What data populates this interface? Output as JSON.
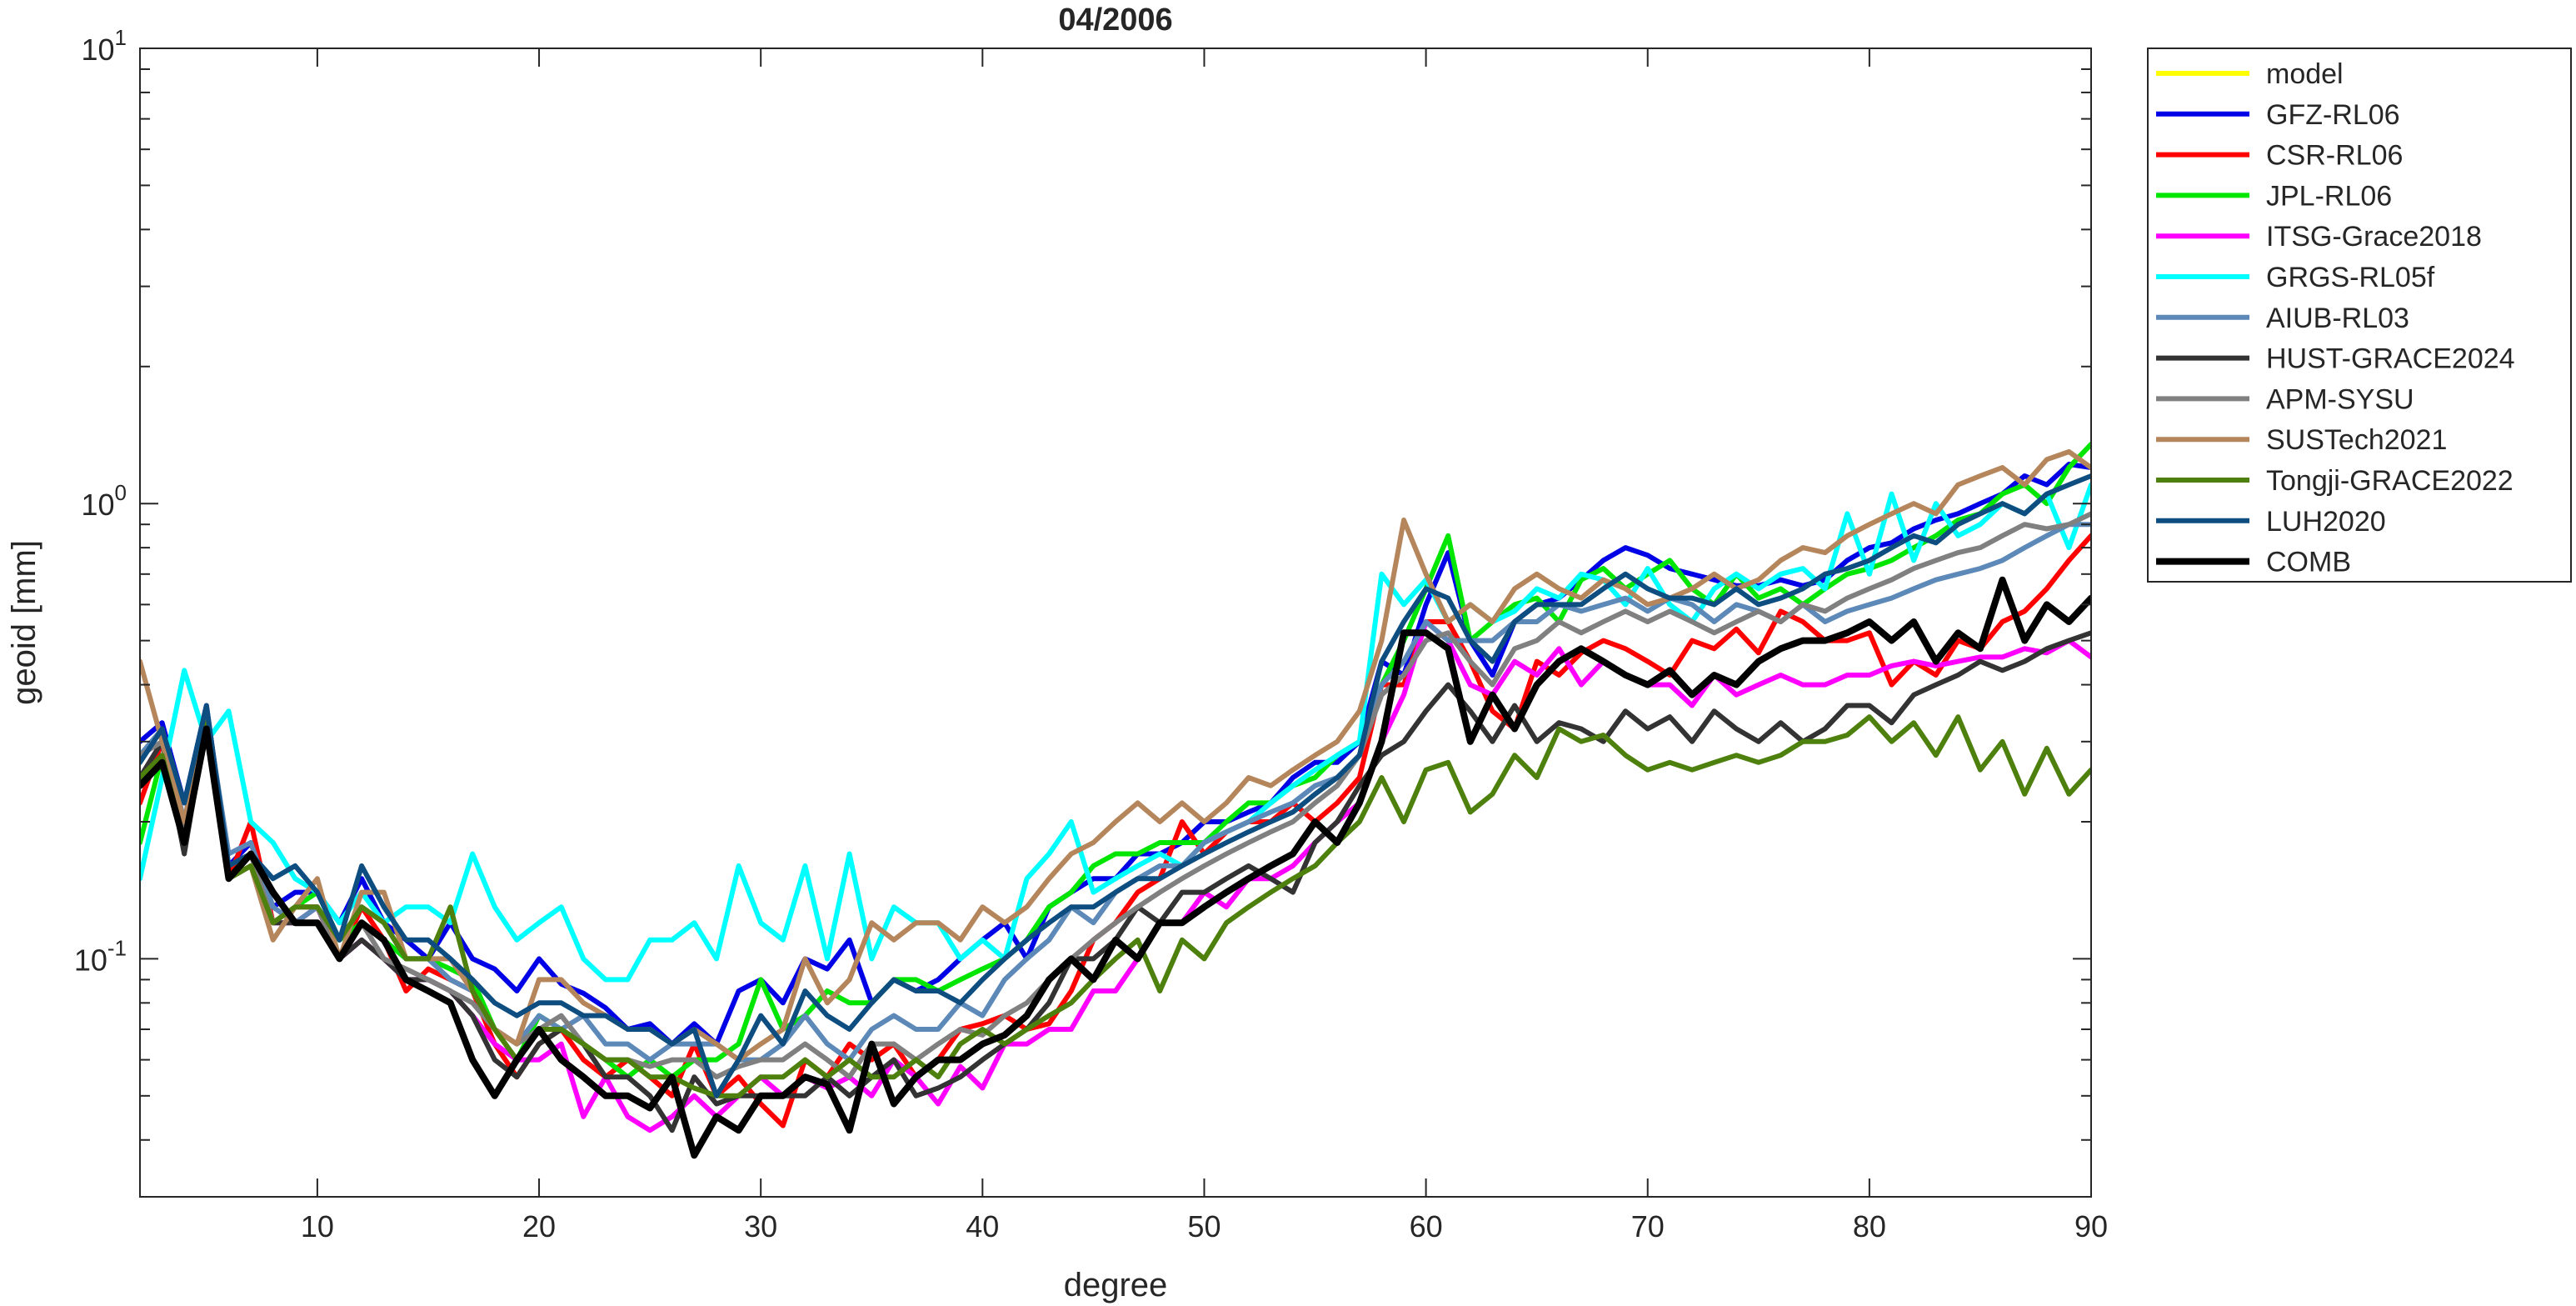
{
  "chart_data": {
    "type": "line",
    "title": "04/2006",
    "xlabel": "degree",
    "ylabel": "geoid [mm]",
    "xlim": [
      2,
      90
    ],
    "ylim": [
      0.03,
      10
    ],
    "yscale": "log",
    "xticks": [
      10,
      20,
      30,
      40,
      50,
      60,
      70,
      80,
      90
    ],
    "xtick_labels": [
      "10",
      "20",
      "30",
      "40",
      "50",
      "60",
      "70",
      "80",
      "90"
    ],
    "yticks": [
      0.1,
      1,
      10
    ],
    "ytick_labels": [
      {
        "base": "10",
        "exp": "-1"
      },
      {
        "base": "10",
        "exp": "0"
      },
      {
        "base": "10",
        "exp": "1"
      }
    ],
    "grid": false,
    "legend_position": "outside-right-top",
    "x_start": 2,
    "series": [
      {
        "name": "model",
        "color": "#ffff00",
        "width": 6,
        "values": []
      },
      {
        "name": "GFZ-RL06",
        "color": "#0000e6",
        "width": 6,
        "values": [
          0.3,
          0.33,
          0.22,
          0.36,
          0.16,
          0.18,
          0.13,
          0.14,
          0.14,
          0.12,
          0.15,
          0.12,
          0.11,
          0.1,
          0.12,
          0.1,
          0.095,
          0.085,
          0.1,
          0.088,
          0.084,
          0.078,
          0.07,
          0.072,
          0.065,
          0.072,
          0.065,
          0.085,
          0.09,
          0.08,
          0.1,
          0.095,
          0.11,
          0.08,
          0.09,
          0.085,
          0.09,
          0.1,
          0.11,
          0.12,
          0.1,
          0.13,
          0.14,
          0.15,
          0.15,
          0.17,
          0.17,
          0.18,
          0.2,
          0.2,
          0.21,
          0.22,
          0.25,
          0.27,
          0.27,
          0.3,
          0.45,
          0.42,
          0.6,
          0.78,
          0.5,
          0.42,
          0.55,
          0.6,
          0.62,
          0.68,
          0.75,
          0.8,
          0.77,
          0.72,
          0.7,
          0.68,
          0.66,
          0.66,
          0.68,
          0.66,
          0.68,
          0.75,
          0.8,
          0.82,
          0.88,
          0.92,
          0.95,
          1.0,
          1.05,
          1.15,
          1.1,
          1.22,
          1.2
        ]
      },
      {
        "name": "CSR-RL06",
        "color": "#ff0000",
        "width": 6,
        "values": [
          0.22,
          0.3,
          0.18,
          0.34,
          0.15,
          0.2,
          0.12,
          0.13,
          0.13,
          0.1,
          0.13,
          0.11,
          0.085,
          0.095,
          0.09,
          0.085,
          0.065,
          0.055,
          0.065,
          0.07,
          0.06,
          0.055,
          0.06,
          0.055,
          0.05,
          0.065,
          0.05,
          0.055,
          0.048,
          0.043,
          0.06,
          0.055,
          0.065,
          0.06,
          0.065,
          0.055,
          0.06,
          0.07,
          0.072,
          0.075,
          0.07,
          0.072,
          0.085,
          0.11,
          0.12,
          0.14,
          0.15,
          0.2,
          0.17,
          0.19,
          0.2,
          0.2,
          0.22,
          0.2,
          0.22,
          0.25,
          0.4,
          0.4,
          0.55,
          0.55,
          0.45,
          0.35,
          0.32,
          0.45,
          0.42,
          0.47,
          0.5,
          0.48,
          0.45,
          0.42,
          0.5,
          0.48,
          0.53,
          0.47,
          0.58,
          0.55,
          0.5,
          0.5,
          0.52,
          0.4,
          0.45,
          0.42,
          0.5,
          0.48,
          0.55,
          0.58,
          0.65,
          0.75,
          0.85
        ]
      },
      {
        "name": "JPL-RL06",
        "color": "#00e600",
        "width": 6,
        "values": [
          0.18,
          0.28,
          0.2,
          0.33,
          0.16,
          0.17,
          0.12,
          0.13,
          0.14,
          0.11,
          0.12,
          0.11,
          0.1,
          0.1,
          0.095,
          0.09,
          0.07,
          0.06,
          0.075,
          0.07,
          0.065,
          0.06,
          0.055,
          0.06,
          0.055,
          0.06,
          0.06,
          0.065,
          0.09,
          0.07,
          0.075,
          0.085,
          0.08,
          0.08,
          0.09,
          0.09,
          0.085,
          0.09,
          0.095,
          0.1,
          0.11,
          0.13,
          0.14,
          0.16,
          0.17,
          0.17,
          0.18,
          0.18,
          0.18,
          0.2,
          0.22,
          0.22,
          0.24,
          0.25,
          0.28,
          0.3,
          0.4,
          0.5,
          0.65,
          0.85,
          0.5,
          0.55,
          0.6,
          0.62,
          0.55,
          0.68,
          0.72,
          0.65,
          0.7,
          0.75,
          0.65,
          0.6,
          0.7,
          0.62,
          0.65,
          0.6,
          0.65,
          0.7,
          0.72,
          0.75,
          0.8,
          0.85,
          0.92,
          0.95,
          1.05,
          1.1,
          1.0,
          1.2,
          1.35
        ]
      },
      {
        "name": "ITSG-Grace2018",
        "color": "#ff00ff",
        "width": 6,
        "values": [
          0.25,
          0.3,
          0.2,
          0.35,
          0.15,
          0.17,
          0.12,
          0.12,
          0.13,
          0.1,
          0.11,
          0.1,
          0.09,
          0.09,
          0.085,
          0.075,
          0.065,
          0.06,
          0.06,
          0.065,
          0.045,
          0.055,
          0.045,
          0.042,
          0.045,
          0.05,
          0.045,
          0.05,
          0.055,
          0.05,
          0.055,
          0.052,
          0.055,
          0.05,
          0.06,
          0.055,
          0.048,
          0.058,
          0.052,
          0.065,
          0.065,
          0.07,
          0.07,
          0.085,
          0.085,
          0.1,
          0.12,
          0.12,
          0.14,
          0.13,
          0.15,
          0.15,
          0.16,
          0.18,
          0.2,
          0.22,
          0.3,
          0.38,
          0.55,
          0.5,
          0.4,
          0.38,
          0.45,
          0.42,
          0.48,
          0.4,
          0.45,
          0.42,
          0.4,
          0.4,
          0.36,
          0.42,
          0.38,
          0.4,
          0.42,
          0.4,
          0.4,
          0.42,
          0.42,
          0.44,
          0.45,
          0.44,
          0.45,
          0.46,
          0.46,
          0.48,
          0.47,
          0.5,
          0.46
        ]
      },
      {
        "name": "GRGS-RL05f",
        "color": "#00ffff",
        "width": 6,
        "values": [
          0.15,
          0.25,
          0.43,
          0.3,
          0.35,
          0.2,
          0.18,
          0.15,
          0.14,
          0.12,
          0.14,
          0.12,
          0.13,
          0.13,
          0.12,
          0.17,
          0.13,
          0.11,
          0.12,
          0.13,
          0.1,
          0.09,
          0.09,
          0.11,
          0.11,
          0.12,
          0.1,
          0.16,
          0.12,
          0.11,
          0.16,
          0.1,
          0.17,
          0.1,
          0.13,
          0.12,
          0.12,
          0.1,
          0.11,
          0.1,
          0.15,
          0.17,
          0.2,
          0.14,
          0.15,
          0.16,
          0.17,
          0.16,
          0.18,
          0.19,
          0.2,
          0.22,
          0.24,
          0.26,
          0.28,
          0.3,
          0.7,
          0.6,
          0.68,
          0.55,
          0.6,
          0.55,
          0.58,
          0.65,
          0.62,
          0.7,
          0.68,
          0.6,
          0.72,
          0.6,
          0.55,
          0.65,
          0.7,
          0.65,
          0.7,
          0.72,
          0.65,
          0.95,
          0.7,
          1.05,
          0.75,
          1.0,
          0.85,
          0.9,
          1.0,
          0.95,
          1.05,
          0.8,
          1.1
        ]
      },
      {
        "name": "AIUB-RL03",
        "color": "#5c89b8",
        "width": 6,
        "values": [
          0.28,
          0.32,
          0.2,
          0.35,
          0.17,
          0.18,
          0.13,
          0.12,
          0.13,
          0.11,
          0.13,
          0.12,
          0.1,
          0.1,
          0.09,
          0.085,
          0.07,
          0.065,
          0.075,
          0.07,
          0.075,
          0.065,
          0.065,
          0.06,
          0.065,
          0.065,
          0.065,
          0.06,
          0.06,
          0.065,
          0.075,
          0.065,
          0.06,
          0.07,
          0.075,
          0.07,
          0.07,
          0.08,
          0.075,
          0.09,
          0.1,
          0.11,
          0.13,
          0.12,
          0.14,
          0.15,
          0.16,
          0.16,
          0.18,
          0.19,
          0.2,
          0.21,
          0.22,
          0.24,
          0.25,
          0.28,
          0.4,
          0.45,
          0.55,
          0.5,
          0.5,
          0.5,
          0.55,
          0.55,
          0.6,
          0.58,
          0.6,
          0.62,
          0.58,
          0.62,
          0.6,
          0.55,
          0.6,
          0.58,
          0.55,
          0.6,
          0.55,
          0.58,
          0.6,
          0.62,
          0.65,
          0.68,
          0.7,
          0.72,
          0.75,
          0.8,
          0.85,
          0.9,
          0.9
        ]
      },
      {
        "name": "HUST-GRACE2024",
        "color": "#333333",
        "width": 6,
        "values": [
          0.25,
          0.3,
          0.17,
          0.33,
          0.15,
          0.16,
          0.12,
          0.12,
          0.12,
          0.1,
          0.11,
          0.1,
          0.09,
          0.09,
          0.085,
          0.075,
          0.06,
          0.055,
          0.065,
          0.07,
          0.065,
          0.055,
          0.055,
          0.05,
          0.042,
          0.055,
          0.048,
          0.05,
          0.05,
          0.05,
          0.05,
          0.055,
          0.05,
          0.055,
          0.06,
          0.05,
          0.052,
          0.055,
          0.06,
          0.065,
          0.07,
          0.08,
          0.1,
          0.1,
          0.11,
          0.13,
          0.12,
          0.14,
          0.14,
          0.15,
          0.16,
          0.15,
          0.14,
          0.18,
          0.2,
          0.24,
          0.28,
          0.3,
          0.35,
          0.4,
          0.35,
          0.3,
          0.36,
          0.3,
          0.33,
          0.32,
          0.3,
          0.35,
          0.32,
          0.34,
          0.3,
          0.35,
          0.32,
          0.3,
          0.33,
          0.3,
          0.32,
          0.36,
          0.36,
          0.33,
          0.38,
          0.4,
          0.42,
          0.45,
          0.43,
          0.45,
          0.48,
          0.5,
          0.52
        ]
      },
      {
        "name": "APM-SYSU",
        "color": "#808080",
        "width": 6,
        "values": [
          0.28,
          0.3,
          0.19,
          0.33,
          0.16,
          0.17,
          0.12,
          0.13,
          0.13,
          0.1,
          0.12,
          0.1,
          0.095,
          0.09,
          0.085,
          0.08,
          0.07,
          0.065,
          0.07,
          0.075,
          0.065,
          0.06,
          0.06,
          0.058,
          0.06,
          0.06,
          0.055,
          0.058,
          0.06,
          0.06,
          0.065,
          0.06,
          0.055,
          0.065,
          0.065,
          0.06,
          0.065,
          0.07,
          0.068,
          0.075,
          0.08,
          0.09,
          0.1,
          0.11,
          0.12,
          0.13,
          0.14,
          0.15,
          0.16,
          0.17,
          0.18,
          0.19,
          0.2,
          0.22,
          0.24,
          0.28,
          0.38,
          0.42,
          0.5,
          0.52,
          0.45,
          0.4,
          0.48,
          0.5,
          0.55,
          0.52,
          0.55,
          0.58,
          0.55,
          0.58,
          0.55,
          0.52,
          0.55,
          0.58,
          0.55,
          0.6,
          0.58,
          0.62,
          0.65,
          0.68,
          0.72,
          0.75,
          0.78,
          0.8,
          0.85,
          0.9,
          0.88,
          0.9,
          0.95
        ]
      },
      {
        "name": "SUSTech2021",
        "color": "#b5865b",
        "width": 6,
        "values": [
          0.45,
          0.3,
          0.2,
          0.35,
          0.15,
          0.16,
          0.11,
          0.13,
          0.15,
          0.1,
          0.14,
          0.14,
          0.1,
          0.1,
          0.1,
          0.085,
          0.07,
          0.065,
          0.09,
          0.09,
          0.08,
          0.075,
          0.07,
          0.07,
          0.065,
          0.07,
          0.065,
          0.06,
          0.065,
          0.07,
          0.1,
          0.08,
          0.09,
          0.12,
          0.11,
          0.12,
          0.12,
          0.11,
          0.13,
          0.12,
          0.13,
          0.15,
          0.17,
          0.18,
          0.2,
          0.22,
          0.2,
          0.22,
          0.2,
          0.22,
          0.25,
          0.24,
          0.26,
          0.28,
          0.3,
          0.35,
          0.5,
          0.92,
          0.7,
          0.55,
          0.6,
          0.55,
          0.65,
          0.7,
          0.65,
          0.62,
          0.68,
          0.65,
          0.6,
          0.62,
          0.65,
          0.7,
          0.65,
          0.68,
          0.75,
          0.8,
          0.78,
          0.85,
          0.9,
          0.95,
          1.0,
          0.95,
          1.1,
          1.15,
          1.2,
          1.1,
          1.25,
          1.3,
          1.2
        ]
      },
      {
        "name": "Tongji-GRACE2022",
        "color": "#4d800d",
        "width": 6,
        "values": [
          0.25,
          0.28,
          0.18,
          0.33,
          0.15,
          0.16,
          0.12,
          0.13,
          0.13,
          0.11,
          0.13,
          0.12,
          0.1,
          0.1,
          0.13,
          0.085,
          0.07,
          0.06,
          0.07,
          0.07,
          0.065,
          0.06,
          0.06,
          0.055,
          0.055,
          0.052,
          0.05,
          0.05,
          0.055,
          0.055,
          0.06,
          0.055,
          0.06,
          0.055,
          0.055,
          0.06,
          0.055,
          0.065,
          0.07,
          0.065,
          0.07,
          0.075,
          0.08,
          0.09,
          0.1,
          0.11,
          0.085,
          0.11,
          0.1,
          0.12,
          0.13,
          0.14,
          0.15,
          0.16,
          0.18,
          0.2,
          0.25,
          0.2,
          0.26,
          0.27,
          0.21,
          0.23,
          0.28,
          0.25,
          0.32,
          0.3,
          0.31,
          0.28,
          0.26,
          0.27,
          0.26,
          0.27,
          0.28,
          0.27,
          0.28,
          0.3,
          0.3,
          0.31,
          0.34,
          0.3,
          0.33,
          0.28,
          0.34,
          0.26,
          0.3,
          0.23,
          0.29,
          0.23,
          0.26
        ]
      },
      {
        "name": "LUH2020",
        "color": "#0d4d80",
        "width": 6,
        "values": [
          0.27,
          0.32,
          0.22,
          0.36,
          0.16,
          0.17,
          0.15,
          0.16,
          0.14,
          0.11,
          0.16,
          0.13,
          0.11,
          0.11,
          0.1,
          0.09,
          0.08,
          0.075,
          0.08,
          0.08,
          0.075,
          0.075,
          0.07,
          0.07,
          0.065,
          0.07,
          0.05,
          0.06,
          0.075,
          0.065,
          0.085,
          0.075,
          0.07,
          0.08,
          0.09,
          0.085,
          0.085,
          0.08,
          0.09,
          0.1,
          0.11,
          0.12,
          0.13,
          0.13,
          0.14,
          0.15,
          0.15,
          0.16,
          0.17,
          0.18,
          0.19,
          0.2,
          0.21,
          0.23,
          0.25,
          0.28,
          0.45,
          0.55,
          0.65,
          0.62,
          0.5,
          0.45,
          0.55,
          0.6,
          0.6,
          0.6,
          0.65,
          0.7,
          0.65,
          0.62,
          0.62,
          0.6,
          0.65,
          0.6,
          0.62,
          0.65,
          0.7,
          0.72,
          0.75,
          0.8,
          0.85,
          0.82,
          0.9,
          0.95,
          1.0,
          0.95,
          1.05,
          1.1,
          1.15
        ]
      },
      {
        "name": "COMB",
        "color": "#000000",
        "width": 8,
        "values": [
          0.24,
          0.27,
          0.18,
          0.32,
          0.15,
          0.17,
          0.14,
          0.12,
          0.12,
          0.1,
          0.12,
          0.11,
          0.09,
          0.085,
          0.08,
          0.06,
          0.05,
          0.06,
          0.07,
          0.06,
          0.055,
          0.05,
          0.05,
          0.047,
          0.055,
          0.037,
          0.045,
          0.042,
          0.05,
          0.05,
          0.055,
          0.053,
          0.042,
          0.065,
          0.048,
          0.055,
          0.06,
          0.06,
          0.065,
          0.068,
          0.075,
          0.09,
          0.1,
          0.09,
          0.11,
          0.1,
          0.12,
          0.12,
          0.13,
          0.14,
          0.15,
          0.16,
          0.17,
          0.2,
          0.18,
          0.22,
          0.3,
          0.52,
          0.52,
          0.48,
          0.3,
          0.38,
          0.32,
          0.4,
          0.45,
          0.48,
          0.45,
          0.42,
          0.4,
          0.43,
          0.38,
          0.42,
          0.4,
          0.45,
          0.48,
          0.5,
          0.5,
          0.52,
          0.55,
          0.5,
          0.55,
          0.45,
          0.52,
          0.48,
          0.68,
          0.5,
          0.6,
          0.55,
          0.62
        ]
      }
    ]
  }
}
